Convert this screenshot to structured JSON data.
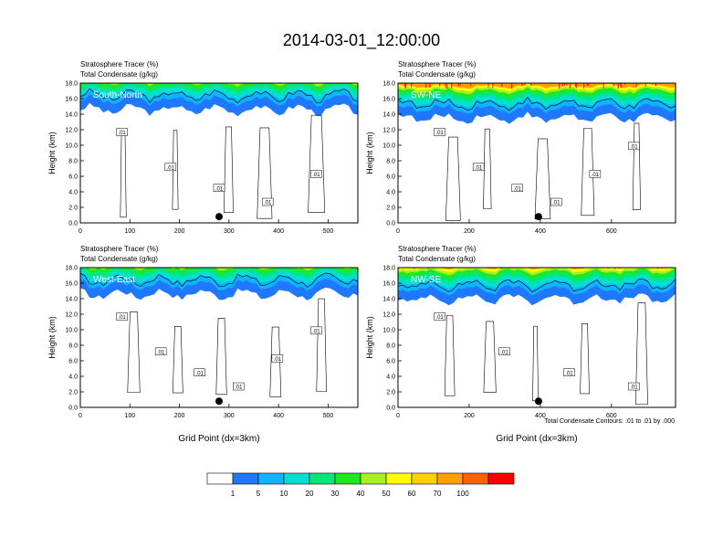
{
  "title": "2014-03-01_12:00:00",
  "footnote": "Total Condensate Contours: .01 to .01 by .000",
  "colorbar": {
    "labels": [
      "1",
      "5",
      "10",
      "20",
      "30",
      "40",
      "50",
      "60",
      "70",
      "100"
    ],
    "colors": [
      "#ffffff",
      "#1f78ff",
      "#0fb4ff",
      "#00e0d0",
      "#00e878",
      "#20e820",
      "#a8f020",
      "#ffff00",
      "#ffd000",
      "#ffa000",
      "#ff6000",
      "#ff0000"
    ]
  },
  "chart_data": [
    {
      "type": "heatmap",
      "panel_label": "South-North",
      "header_lines": [
        "Stratosphere Tracer   (%)",
        "Total Condensate   (g/kg)"
      ],
      "ylabel": "Height (km)",
      "xlabel": "",
      "xlim": [
        0,
        560
      ],
      "ylim": [
        0,
        18
      ],
      "xticks": [
        "0",
        "100",
        "200",
        "300",
        "400",
        "500"
      ],
      "xtick_values": [
        0,
        100,
        200,
        300,
        400,
        500
      ],
      "yticks": [
        "0.0",
        "2.0",
        "4.0",
        "6.0",
        "8.0",
        "10.0",
        "12.0",
        "14.0",
        "16.0",
        "18.0"
      ],
      "tracer_base_km": 14.6,
      "contour_labels": [
        ".01",
        ".01",
        ".01",
        ".01",
        ".01"
      ],
      "marker_x": 280
    },
    {
      "type": "heatmap",
      "panel_label": "SW-NE",
      "header_lines": [
        "Stratosphere Tracer   (%)",
        "Total Condensate   (g/kg)"
      ],
      "ylabel": "Height (km)",
      "xlabel": "",
      "xlim": [
        0,
        780
      ],
      "ylim": [
        0,
        18
      ],
      "xticks": [
        "0",
        "200",
        "400",
        "600"
      ],
      "xtick_values": [
        0,
        200,
        400,
        600
      ],
      "yticks": [
        "0.0",
        "2.0",
        "4.0",
        "6.0",
        "8.0",
        "10.0",
        "12.0",
        "14.0",
        "16.0",
        "18.0"
      ],
      "tracer_base_km": 13.5,
      "contour_labels": [
        ".01",
        ".01",
        ".01",
        ".01",
        ".01",
        ".01"
      ],
      "marker_x": 395
    },
    {
      "type": "heatmap",
      "panel_label": "West-East",
      "header_lines": [
        "Stratosphere Tracer   (%)",
        "Total Condensate   (g/kg)"
      ],
      "ylabel": "Height (km)",
      "xlabel": "Grid Point (dx=3km)",
      "xlim": [
        0,
        560
      ],
      "ylim": [
        0,
        18
      ],
      "xticks": [
        "0",
        "100",
        "200",
        "300",
        "400",
        "500"
      ],
      "xtick_values": [
        0,
        100,
        200,
        300,
        400,
        500
      ],
      "yticks": [
        "0.0",
        "2.0",
        "4.0",
        "6.0",
        "8.0",
        "10.0",
        "12.0",
        "14.0",
        "16.0",
        "18.0"
      ],
      "tracer_base_km": 14.6,
      "contour_labels": [
        ".01",
        ".01",
        ".01",
        ".01",
        ".01",
        ".01"
      ],
      "marker_x": 280
    },
    {
      "type": "heatmap",
      "panel_label": "NW-SE",
      "header_lines": [
        "Stratosphere Tracer   (%)",
        "Total Condensate   (g/kg)"
      ],
      "ylabel": "Height (km)",
      "xlabel": "Grid Point (dx=3km)",
      "xlim": [
        0,
        780
      ],
      "ylim": [
        0,
        18
      ],
      "xticks": [
        "0",
        "200",
        "400",
        "600"
      ],
      "xtick_values": [
        0,
        200,
        400,
        600
      ],
      "yticks": [
        "0.0",
        "2.0",
        "4.0",
        "6.0",
        "8.0",
        "10.0",
        "12.0",
        "14.0",
        "16.0",
        "18.0"
      ],
      "tracer_base_km": 14.0,
      "contour_labels": [
        ".01",
        ".01",
        ".01",
        ".01"
      ],
      "marker_x": 395
    }
  ]
}
